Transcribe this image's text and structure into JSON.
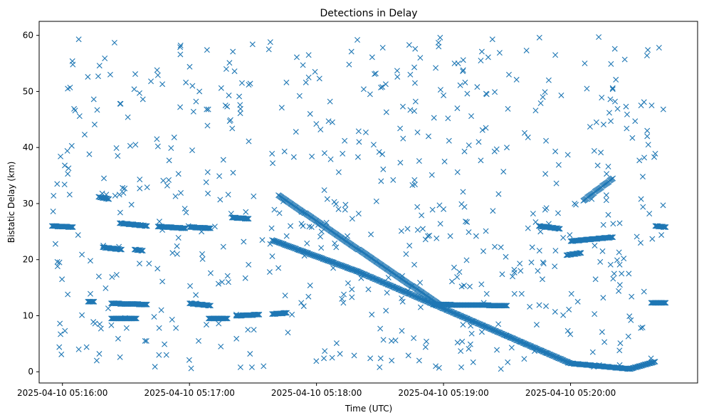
{
  "chart_data": {
    "type": "scatter",
    "title": "Detections in Delay",
    "xlabel": "Time (UTC)",
    "ylabel": "Bistatic Delay (km)",
    "marker": "x",
    "color": "#1f77b4",
    "grid": false,
    "legend": "none",
    "xlim": [
      "2025-04-10 05:15:49",
      "2025-04-10 05:21:00"
    ],
    "ylim": [
      -2.0,
      62.5
    ],
    "x_ticks": [
      "2025-04-10 05:16:00",
      "2025-04-10 05:17:00",
      "2025-04-10 05:18:00",
      "2025-04-10 05:19:00",
      "2025-04-10 05:20:00"
    ],
    "y_ticks": [
      0,
      10,
      20,
      30,
      40,
      50,
      60
    ],
    "tracks": [
      {
        "x_start": "2025-04-10 05:15:55",
        "x_end": "2025-04-10 05:16:05",
        "y_start": 26.0,
        "y_end": 25.8
      },
      {
        "x_start": "2025-04-10 05:16:12",
        "x_end": "2025-04-10 05:16:15",
        "y_start": 12.5,
        "y_end": 12.5
      },
      {
        "x_start": "2025-04-10 05:16:17",
        "x_end": "2025-04-10 05:16:22",
        "y_start": 31.2,
        "y_end": 30.8
      },
      {
        "x_start": "2025-04-10 05:16:19",
        "x_end": "2025-04-10 05:16:28",
        "y_start": 22.2,
        "y_end": 21.8
      },
      {
        "x_start": "2025-04-10 05:16:23",
        "x_end": "2025-04-10 05:16:40",
        "y_start": 12.2,
        "y_end": 12.0
      },
      {
        "x_start": "2025-04-10 05:16:23",
        "x_end": "2025-04-10 05:16:35",
        "y_start": 9.5,
        "y_end": 9.5
      },
      {
        "x_start": "2025-04-10 05:16:27",
        "x_end": "2025-04-10 05:16:40",
        "y_start": 26.5,
        "y_end": 26.0
      },
      {
        "x_start": "2025-04-10 05:16:34",
        "x_end": "2025-04-10 05:16:38",
        "y_start": 21.8,
        "y_end": 21.6
      },
      {
        "x_start": "2025-04-10 05:16:45",
        "x_end": "2025-04-10 05:16:58",
        "y_start": 25.9,
        "y_end": 25.6
      },
      {
        "x_start": "2025-04-10 05:17:00",
        "x_end": "2025-04-10 05:17:10",
        "y_start": 25.8,
        "y_end": 25.6
      },
      {
        "x_start": "2025-04-10 05:17:00",
        "x_end": "2025-04-10 05:17:10",
        "y_start": 12.2,
        "y_end": 11.8
      },
      {
        "x_start": "2025-04-10 05:17:09",
        "x_end": "2025-04-10 05:17:18",
        "y_start": 9.5,
        "y_end": 9.5
      },
      {
        "x_start": "2025-04-10 05:17:20",
        "x_end": "2025-04-10 05:17:28",
        "y_start": 27.5,
        "y_end": 27.3
      },
      {
        "x_start": "2025-04-10 05:17:22",
        "x_end": "2025-04-10 05:17:33",
        "y_start": 10.0,
        "y_end": 10.2
      },
      {
        "x_start": "2025-04-10 05:17:39",
        "x_end": "2025-04-10 05:17:46",
        "y_start": 10.3,
        "y_end": 10.5
      },
      {
        "x_start": "2025-04-10 05:17:42",
        "x_end": "2025-04-10 05:18:58",
        "y_start": 31.5,
        "y_end": 12.0
      },
      {
        "x_start": "2025-04-10 05:17:39",
        "x_end": "2025-04-10 05:18:20",
        "y_start": 23.5,
        "y_end": 17.8
      },
      {
        "x_start": "2025-04-10 05:18:20",
        "x_end": "2025-04-10 05:20:00",
        "y_start": 17.8,
        "y_end": 1.5
      },
      {
        "x_start": "2025-04-10 05:20:00",
        "x_end": "2025-04-10 05:20:28",
        "y_start": 1.5,
        "y_end": 0.5
      },
      {
        "x_start": "2025-04-10 05:20:28",
        "x_end": "2025-04-10 05:20:40",
        "y_start": 0.5,
        "y_end": 1.8
      },
      {
        "x_start": "2025-04-10 05:18:55",
        "x_end": "2025-04-10 05:19:30",
        "y_start": 12.0,
        "y_end": 11.8
      },
      {
        "x_start": "2025-04-10 05:19:45",
        "x_end": "2025-04-10 05:19:55",
        "y_start": 26.0,
        "y_end": 25.5
      },
      {
        "x_start": "2025-04-10 05:19:58",
        "x_end": "2025-04-10 05:20:05",
        "y_start": 20.8,
        "y_end": 21.2
      },
      {
        "x_start": "2025-04-10 05:20:00",
        "x_end": "2025-04-10 05:20:20",
        "y_start": 23.3,
        "y_end": 24.0
      },
      {
        "x_start": "2025-04-10 05:20:06",
        "x_end": "2025-04-10 05:20:20",
        "y_start": 30.5,
        "y_end": 34.5
      },
      {
        "x_start": "2025-04-10 05:20:38",
        "x_end": "2025-04-10 05:20:45",
        "y_start": 12.3,
        "y_end": 12.3
      },
      {
        "x_start": "2025-04-10 05:20:40",
        "x_end": "2025-04-10 05:20:45",
        "y_start": 26.0,
        "y_end": 25.8
      }
    ],
    "points": []
  }
}
